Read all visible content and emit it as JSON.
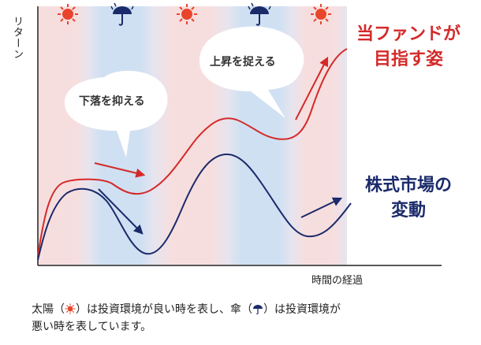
{
  "axes": {
    "y_label": "リターン",
    "x_label": "時間の経過"
  },
  "bubbles": {
    "left": "下落を抑える",
    "right": "上昇を捉える"
  },
  "series_labels": {
    "fund": [
      "当ファンドが",
      "目指す姿"
    ],
    "market": [
      "株式市場の",
      "変動"
    ]
  },
  "caption": {
    "part1": "太陽（",
    "part2": "）は投資環境が良い時を表し、傘（",
    "part3": "）は投資環境が",
    "line2": "悪い時を表しています。"
  },
  "icons": [
    "sun-icon",
    "umbrella-icon",
    "sun-icon",
    "umbrella-icon",
    "sun-icon"
  ],
  "colors": {
    "good_band": "#f7dede",
    "bad_band": "#cfe0f2",
    "fund_line": "#d42a2a",
    "market_line": "#1a2a6a",
    "sun": "#e8452c",
    "umbrella": "#1a2a6a"
  }
}
